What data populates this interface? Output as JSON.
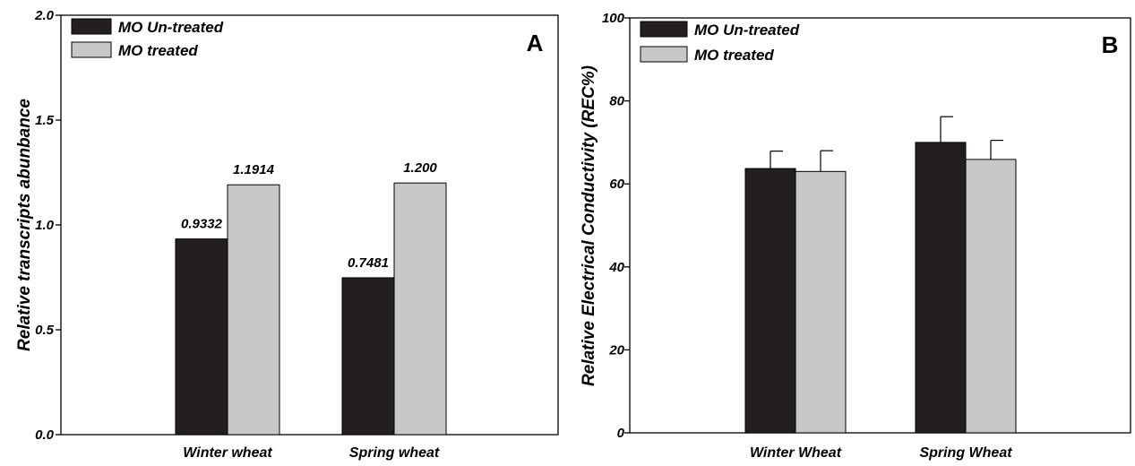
{
  "chart_data": [
    {
      "type": "bar",
      "panel_label": "A",
      "title": "",
      "xlabel": "",
      "ylabel": "Relative transcripts abunbance",
      "categories": [
        "Winter wheat",
        "Spring wheat"
      ],
      "ylim": [
        0,
        2.0
      ],
      "yticks": [
        0.0,
        0.5,
        1.0,
        1.5,
        2.0
      ],
      "ytick_labels": [
        "0.0",
        "0.5",
        "1.0",
        "1.5",
        "2.0"
      ],
      "grid": false,
      "legend_position": "top-left",
      "series": [
        {
          "name": "MO Un-treated",
          "color": "#231f20",
          "values": [
            0.9332,
            0.7481
          ],
          "labels": [
            "0.9332",
            "0.7481"
          ]
        },
        {
          "name": "MO treated",
          "color": "#c8c8c8",
          "values": [
            1.1914,
            1.2
          ],
          "labels": [
            "1.1914",
            "1.200"
          ]
        }
      ]
    },
    {
      "type": "bar",
      "panel_label": "B",
      "title": "",
      "xlabel": "",
      "ylabel": "Relative Electrical Conductivity (REC%)",
      "categories": [
        "Winter Wheat",
        "Spring Wheat"
      ],
      "ylim": [
        0,
        100
      ],
      "yticks": [
        0,
        20,
        40,
        60,
        80,
        100
      ],
      "ytick_labels": [
        "0",
        "20",
        "40",
        "60",
        "80",
        "100"
      ],
      "grid": false,
      "legend_position": "top-left",
      "series": [
        {
          "name": "MO Un-treated",
          "color": "#231f20",
          "values": [
            63.7,
            70.0
          ],
          "errors": [
            4.2,
            6.2
          ]
        },
        {
          "name": "MO treated",
          "color": "#c8c8c8",
          "values": [
            63.0,
            65.9
          ],
          "errors": [
            5.0,
            4.6
          ]
        }
      ]
    }
  ]
}
